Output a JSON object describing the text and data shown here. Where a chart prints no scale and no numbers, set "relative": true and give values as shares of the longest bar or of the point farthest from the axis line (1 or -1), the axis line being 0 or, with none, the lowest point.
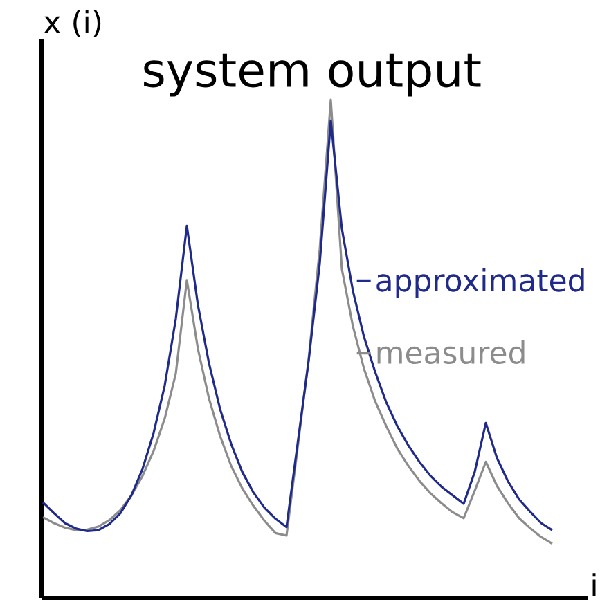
{
  "chart_data": {
    "type": "line",
    "title": "system output",
    "xlabel": "i",
    "ylabel": "x (i)",
    "relative": true,
    "legend": "right",
    "categories": [
      null,
      null,
      null,
      null,
      null,
      null,
      null,
      null,
      null,
      null,
      null,
      null,
      null,
      null,
      null,
      null,
      null,
      null,
      null,
      null,
      null,
      null,
      null,
      null,
      null,
      null,
      null,
      null,
      null,
      null,
      null,
      null,
      null,
      null,
      null,
      null,
      null,
      null,
      null,
      null,
      null,
      null,
      null,
      null,
      null,
      null,
      null
    ],
    "series": [
      {
        "name": "approximated",
        "color": "#1f2a8a",
        "values": [
          0.192,
          0.17,
          0.15,
          0.139,
          0.134,
          0.136,
          0.148,
          0.17,
          0.206,
          0.259,
          0.331,
          0.426,
          0.56,
          0.747,
          0.588,
          0.471,
          0.379,
          0.309,
          0.253,
          0.212,
          0.181,
          0.159,
          0.142,
          0.309,
          0.476,
          0.671,
          0.958,
          0.741,
          0.616,
          0.524,
          0.454,
          0.393,
          0.345,
          0.306,
          0.273,
          0.245,
          0.223,
          0.206,
          0.189,
          0.253,
          0.351,
          0.281,
          0.234,
          0.198,
          0.173,
          0.15,
          0.136
        ]
      },
      {
        "name": "measured",
        "color": "#8c8c8c",
        "values": [
          0.162,
          0.15,
          0.141,
          0.136,
          0.137,
          0.143,
          0.156,
          0.176,
          0.206,
          0.245,
          0.295,
          0.36,
          0.45,
          0.638,
          0.5,
          0.4,
          0.325,
          0.265,
          0.22,
          0.185,
          0.155,
          0.13,
          0.125,
          0.3,
          0.48,
          0.7,
          1.0,
          0.66,
          0.545,
          0.46,
          0.395,
          0.345,
          0.3,
          0.265,
          0.235,
          0.21,
          0.19,
          0.172,
          0.16,
          0.215,
          0.273,
          0.225,
          0.19,
          0.16,
          0.14,
          0.122,
          0.109
        ]
      }
    ]
  }
}
